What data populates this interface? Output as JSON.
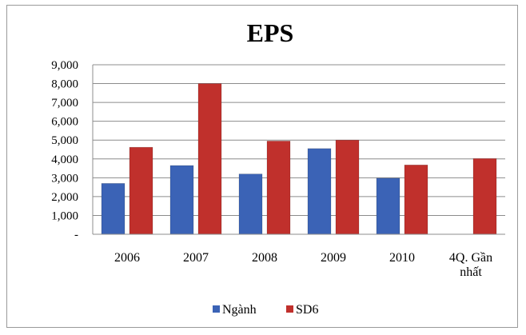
{
  "chart_data": {
    "type": "bar",
    "title": "EPS",
    "categories": [
      [
        "2006"
      ],
      [
        "2007"
      ],
      [
        "2008"
      ],
      [
        "2009"
      ],
      [
        "2010"
      ],
      [
        "4Q. Gần",
        "nhất"
      ]
    ],
    "series": [
      {
        "name": "Ngành",
        "color": "#3b63b6",
        "values": [
          2700,
          3650,
          3200,
          4550,
          2980,
          null
        ]
      },
      {
        "name": "SD6",
        "color": "#c0302c",
        "values": [
          4620,
          8000,
          4950,
          5000,
          3680,
          4020
        ]
      }
    ],
    "ylim": [
      0,
      9000
    ],
    "yticks": [
      {
        "value": 0,
        "label": "-"
      },
      {
        "value": 1000,
        "label": "1,000"
      },
      {
        "value": 2000,
        "label": "2,000"
      },
      {
        "value": 3000,
        "label": "3,000"
      },
      {
        "value": 4000,
        "label": "4,000"
      },
      {
        "value": 5000,
        "label": "5,000"
      },
      {
        "value": 6000,
        "label": "6,000"
      },
      {
        "value": 7000,
        "label": "7,000"
      },
      {
        "value": 8000,
        "label": "8,000"
      },
      {
        "value": 9000,
        "label": "9,000"
      }
    ],
    "grid": true,
    "legend": "bottom"
  }
}
